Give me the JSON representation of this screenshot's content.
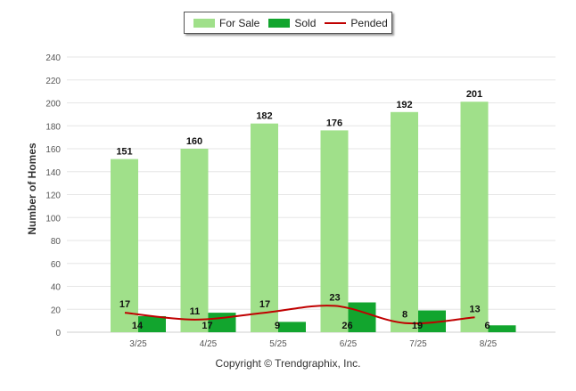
{
  "chart_data": {
    "type": "bar",
    "categories": [
      "3/25",
      "4/25",
      "5/25",
      "6/25",
      "7/25",
      "8/25"
    ],
    "series": [
      {
        "name": "For Sale",
        "kind": "bar",
        "color": "#a0e08a",
        "values": [
          151,
          160,
          182,
          176,
          192,
          201
        ]
      },
      {
        "name": "Sold",
        "kind": "bar",
        "color": "#12a52e",
        "values": [
          14,
          17,
          9,
          26,
          19,
          6
        ]
      },
      {
        "name": "Pended",
        "kind": "line",
        "color": "#c00000",
        "values": [
          17,
          11,
          17,
          23,
          8,
          13
        ]
      }
    ],
    "ylabel": "Number of Homes",
    "xlabel": "",
    "ylim": [
      0,
      240
    ],
    "yticks": [
      0,
      20,
      40,
      60,
      80,
      100,
      120,
      140,
      160,
      180,
      200,
      220,
      240
    ],
    "grid": true,
    "legend_position": "top-center"
  },
  "legend": {
    "for_sale": "For Sale",
    "sold": "Sold",
    "pended": "Pended"
  },
  "footer": "Copyright © Trendgraphix, Inc."
}
